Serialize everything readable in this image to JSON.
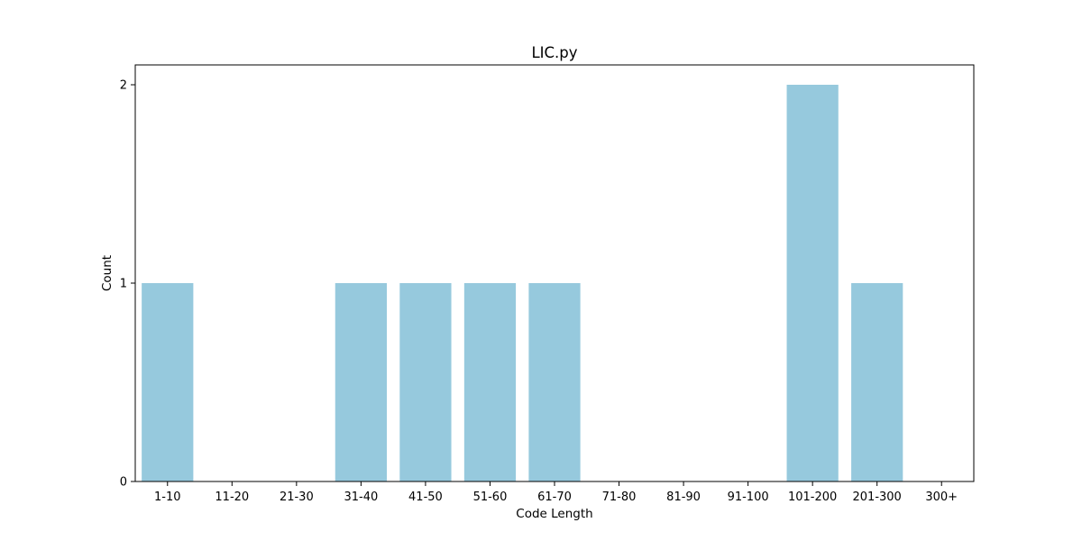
{
  "chart_data": {
    "type": "bar",
    "title": "LIC.py",
    "xlabel": "Code Length",
    "ylabel": "Count",
    "categories": [
      "1-10",
      "11-20",
      "21-30",
      "31-40",
      "41-50",
      "51-60",
      "61-70",
      "71-80",
      "81-90",
      "91-100",
      "101-200",
      "201-300",
      "300+"
    ],
    "values": [
      1,
      0,
      0,
      1,
      1,
      1,
      1,
      0,
      0,
      0,
      2,
      1,
      0
    ],
    "ylim": [
      0,
      2.1
    ],
    "yticks": [
      0,
      1,
      2
    ],
    "bar_color": "#96c9dd",
    "grid": false,
    "legend": "none"
  }
}
